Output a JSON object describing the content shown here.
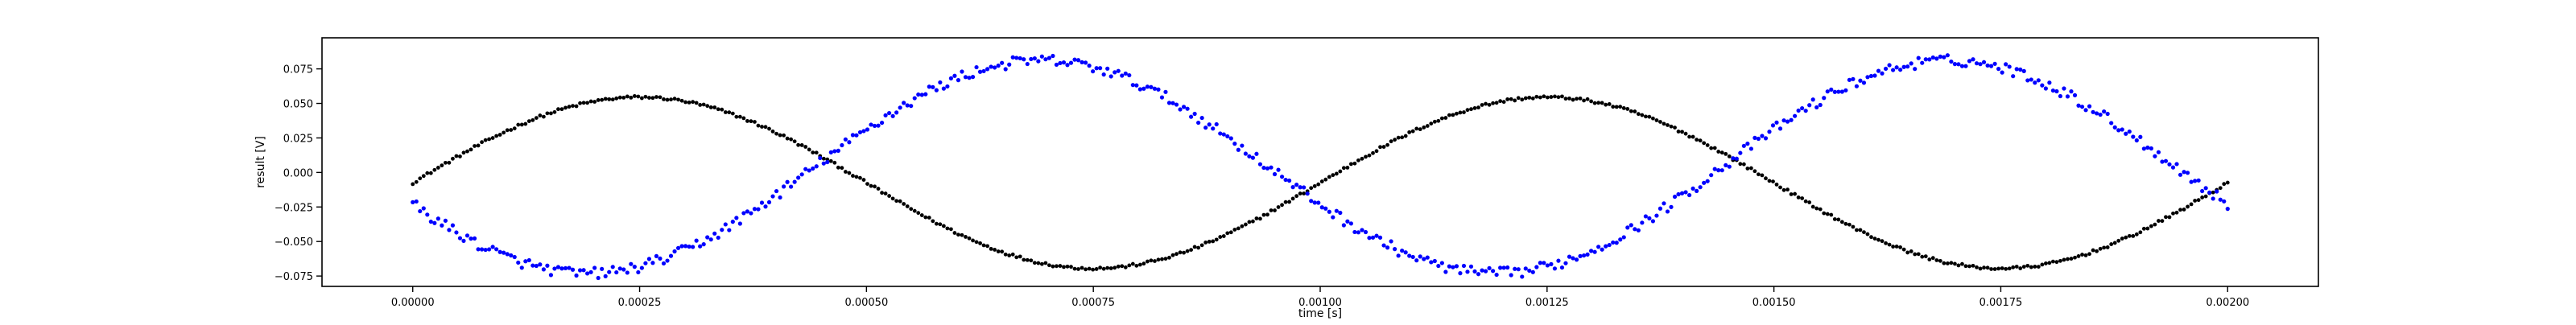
{
  "chart_data": {
    "type": "scatter",
    "title": "",
    "xlabel": "time [s]",
    "ylabel": "result [V]",
    "xlim": [
      -0.0001,
      0.0021
    ],
    "ylim": [
      -0.0825,
      0.0975
    ],
    "x_ticks": [
      0.0,
      0.00025,
      0.0005,
      0.00075,
      0.001,
      0.00125,
      0.0015,
      0.00175,
      0.002
    ],
    "x_tick_labels": [
      "0.00000",
      "0.00025",
      "0.00050",
      "0.00075",
      "0.00100",
      "0.00125",
      "0.00150",
      "0.00175",
      "0.00200"
    ],
    "y_ticks": [
      -0.075,
      -0.05,
      -0.025,
      0.0,
      0.025,
      0.05,
      0.075
    ],
    "y_tick_labels": [
      "−0.075",
      "−0.050",
      "−0.025",
      "0.000",
      "0.025",
      "0.050",
      "0.075"
    ],
    "grid": false,
    "legend": "none",
    "series": [
      {
        "color": "#000000",
        "marker": "dot",
        "x_range": [
          0.0,
          0.002
        ],
        "points": 500,
        "offset": -0.0075,
        "amplitude": 0.062,
        "frequency_hz": 1000,
        "phase_rad": 0.0,
        "noise": 0.001
      },
      {
        "color": "#0000ff",
        "marker": "dot",
        "x_range": [
          0.0,
          0.002
        ],
        "points": 500,
        "offset": 0.004,
        "amplitude": 0.077,
        "frequency_hz": 1000,
        "phase_rad": 3.5,
        "noise": 0.004
      }
    ]
  }
}
